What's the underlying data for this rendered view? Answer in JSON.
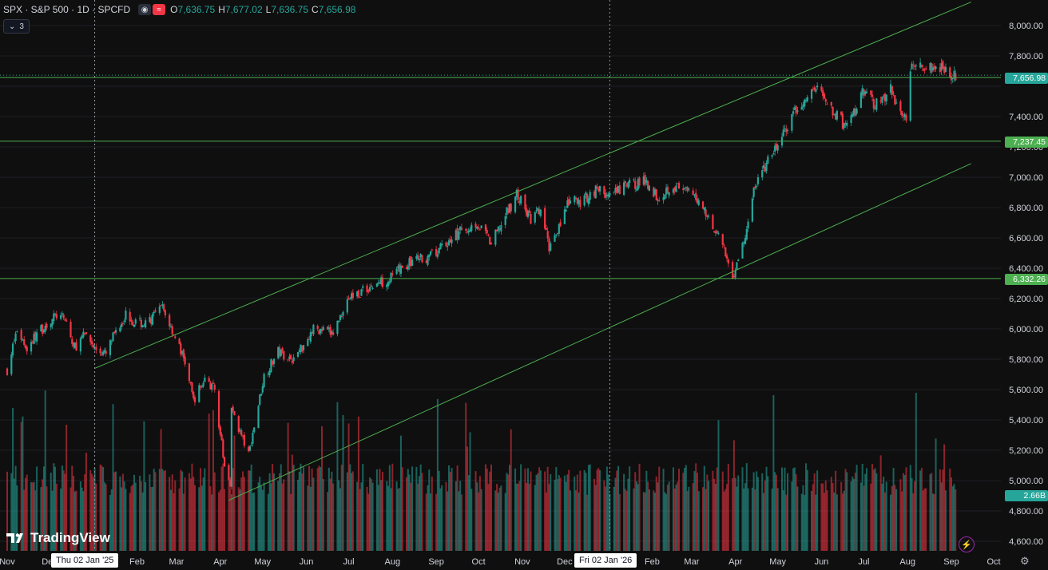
{
  "header": {
    "symbol": "SPX · S&P 500 · 1D · SPCFD",
    "o_label": "O",
    "o_value": "7,636.75",
    "h_label": "H",
    "h_value": "7,677.02",
    "l_label": "L",
    "l_value": "7,636.75",
    "c_label": "C",
    "c_value": "7,656.98",
    "collapse_count": "3"
  },
  "price_axis": {
    "ticks": [
      "8,000.00",
      "7,800.00",
      "7,400.00",
      "7,200.00",
      "7,000.00",
      "6,800.00",
      "6,600.00",
      "6,400.00",
      "6,200.00",
      "6,000.00",
      "5,800.00",
      "5,600.00",
      "5,400.00",
      "5,200.00",
      "5,000.00",
      "4,800.00",
      "4,600.00"
    ]
  },
  "time_axis": {
    "labels": [
      "Nov",
      "Dec",
      "Feb",
      "Mar",
      "Apr",
      "May",
      "Jun",
      "Jul",
      "Aug",
      "Sep",
      "Oct",
      "Nov",
      "Dec",
      "Feb",
      "Mar",
      "Apr",
      "May",
      "Jun",
      "Jul",
      "Aug",
      "Sep",
      "Oct"
    ],
    "crosshair_left": "Thu 02 Jan '25",
    "crosshair_right": "Fri 02 Jan '26"
  },
  "tags": {
    "last_price": "7,656.98",
    "level_high": "7,237.45",
    "level_low": "6,332.26",
    "volume": "2.66B"
  },
  "levels": {
    "resistance_1": 7656.98,
    "resistance_2": 7237.45,
    "support": 6332.26
  },
  "channel": {
    "upper": [
      {
        "date": "2025-01-02",
        "price": 5740
      },
      {
        "date": "2026-09-15",
        "price": 8155
      }
    ],
    "lower": [
      {
        "date": "2025-04-07",
        "price": 4870
      },
      {
        "date": "2026-09-15",
        "price": 7090
      }
    ]
  },
  "colors": {
    "up": "#26a69a",
    "down": "#f23645",
    "level": "#4caf50",
    "background": "#0f0f0f",
    "axis_text": "#d1d4dc"
  },
  "brand": "TradingView",
  "icons": [
    "eye-icon",
    "wave-icon",
    "chevron-icon",
    "tradingview-logo-icon",
    "lightning-icon",
    "settings-icon"
  ],
  "chart_data": {
    "type": "candlestick",
    "title": "SPX · S&P 500 · 1D · SPCFD",
    "ylim": [
      4550,
      8080
    ],
    "x_range": [
      "2024-11-01",
      "2026-10-01"
    ],
    "series": [
      {
        "name": "SPX",
        "type": "close_path",
        "points": [
          {
            "date": "2024-11-01",
            "price": 5730
          },
          {
            "date": "2024-11-08",
            "price": 5995
          },
          {
            "date": "2024-11-15",
            "price": 5870
          },
          {
            "date": "2024-11-22",
            "price": 5970
          },
          {
            "date": "2024-11-29",
            "price": 6030
          },
          {
            "date": "2024-12-06",
            "price": 6090
          },
          {
            "date": "2024-12-13",
            "price": 6050
          },
          {
            "date": "2024-12-18",
            "price": 5870
          },
          {
            "date": "2024-12-27",
            "price": 5970
          },
          {
            "date": "2025-01-02",
            "price": 5870
          },
          {
            "date": "2025-01-10",
            "price": 5830
          },
          {
            "date": "2025-01-17",
            "price": 5990
          },
          {
            "date": "2025-01-24",
            "price": 6100
          },
          {
            "date": "2025-01-31",
            "price": 6040
          },
          {
            "date": "2025-02-07",
            "price": 6030
          },
          {
            "date": "2025-02-19",
            "price": 6140
          },
          {
            "date": "2025-02-28",
            "price": 5950
          },
          {
            "date": "2025-03-07",
            "price": 5780
          },
          {
            "date": "2025-03-13",
            "price": 5530
          },
          {
            "date": "2025-03-21",
            "price": 5670
          },
          {
            "date": "2025-03-28",
            "price": 5600
          },
          {
            "date": "2025-04-04",
            "price": 5090
          },
          {
            "date": "2025-04-08",
            "price": 4990
          },
          {
            "date": "2025-04-09",
            "price": 5470
          },
          {
            "date": "2025-04-21",
            "price": 5170
          },
          {
            "date": "2025-05-02",
            "price": 5690
          },
          {
            "date": "2025-05-12",
            "price": 5850
          },
          {
            "date": "2025-05-23",
            "price": 5800
          },
          {
            "date": "2025-06-06",
            "price": 6000
          },
          {
            "date": "2025-06-20",
            "price": 5970
          },
          {
            "date": "2025-06-30",
            "price": 6200
          },
          {
            "date": "2025-07-15",
            "price": 6270
          },
          {
            "date": "2025-07-31",
            "price": 6340
          },
          {
            "date": "2025-08-15",
            "price": 6450
          },
          {
            "date": "2025-08-29",
            "price": 6480
          },
          {
            "date": "2025-09-15",
            "price": 6620
          },
          {
            "date": "2025-09-30",
            "price": 6700
          },
          {
            "date": "2025-10-10",
            "price": 6560
          },
          {
            "date": "2025-10-28",
            "price": 6890
          },
          {
            "date": "2025-11-07",
            "price": 6720
          },
          {
            "date": "2025-11-14",
            "price": 6780
          },
          {
            "date": "2025-11-20",
            "price": 6540
          },
          {
            "date": "2025-12-05",
            "price": 6850
          },
          {
            "date": "2025-12-12",
            "price": 6830
          },
          {
            "date": "2025-12-24",
            "price": 6930
          },
          {
            "date": "2026-01-02",
            "price": 6870
          },
          {
            "date": "2026-01-15",
            "price": 6950
          },
          {
            "date": "2026-01-28",
            "price": 6970
          },
          {
            "date": "2026-02-05",
            "price": 6870
          },
          {
            "date": "2026-02-15",
            "price": 6950
          },
          {
            "date": "2026-02-25",
            "price": 6900
          },
          {
            "date": "2026-03-06",
            "price": 6850
          },
          {
            "date": "2026-03-20",
            "price": 6620
          },
          {
            "date": "2026-03-30",
            "price": 6350
          },
          {
            "date": "2026-04-08",
            "price": 6600
          },
          {
            "date": "2026-04-15",
            "price": 6950
          },
          {
            "date": "2026-04-30",
            "price": 7200
          },
          {
            "date": "2026-05-15",
            "price": 7450
          },
          {
            "date": "2026-05-29",
            "price": 7600
          },
          {
            "date": "2026-06-08",
            "price": 7450
          },
          {
            "date": "2026-06-19",
            "price": 7320
          },
          {
            "date": "2026-06-30",
            "price": 7550
          },
          {
            "date": "2026-07-10",
            "price": 7480
          },
          {
            "date": "2026-07-20",
            "price": 7570
          },
          {
            "date": "2026-07-31",
            "price": 7380
          },
          {
            "date": "2026-08-04",
            "price": 7780
          },
          {
            "date": "2026-08-14",
            "price": 7720
          },
          {
            "date": "2026-08-25",
            "price": 7740
          },
          {
            "date": "2026-09-04",
            "price": 7650
          }
        ]
      }
    ]
  }
}
